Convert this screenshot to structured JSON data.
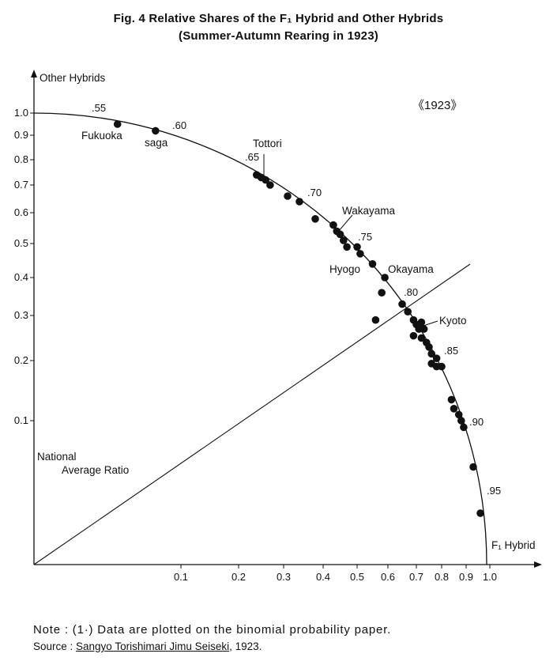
{
  "title": "Fig. 4 Relative Shares of the F₁ Hybrid and Other Hybrids",
  "subtitle": "(Summer-Autumn Rearing in 1923)",
  "note": "Note : (1·) Data are plotted on the binomial probability paper.",
  "source": {
    "prefix": "Source : ",
    "reference": "Sangyo Torishimari Jimu Seiseki",
    "suffix": ", 1923."
  },
  "chart_data": {
    "type": "scatter",
    "year_label": "《1923》",
    "xlabel": "F₁ Hybrid",
    "ylabel": "Other Hybrids",
    "xlim": [
      0,
      1.0
    ],
    "ylim": [
      0,
      1.0
    ],
    "x_ticks": [
      "0.1",
      "0.2",
      "0.3",
      "0.4",
      "0.5",
      "0.6",
      "0.7",
      "0.8",
      "0.9",
      "1.0"
    ],
    "y_ticks": [
      "0.1",
      "0.2",
      "0.3",
      "0.4",
      "0.5",
      "0.6",
      "0.7",
      "0.8",
      "0.9",
      "1.0"
    ],
    "reference_line": "National Average Ratio",
    "curve_ticks": [
      ".55",
      ".60",
      ".65",
      ".70",
      ".75",
      ".80",
      ".85",
      ".90",
      ".95"
    ],
    "annotations": [
      "Fukuoka",
      "saga",
      "Tottori",
      "Wakayama",
      "Hyogo",
      "Okayama",
      "Kyoto"
    ],
    "points": [
      {
        "x": 0.05,
        "y": 0.95,
        "label": "Fukuoka"
      },
      {
        "x": 0.08,
        "y": 0.92,
        "label": "saga"
      },
      {
        "x": 0.24,
        "y": 0.74
      },
      {
        "x": 0.25,
        "y": 0.73,
        "label": "Tottori"
      },
      {
        "x": 0.26,
        "y": 0.72
      },
      {
        "x": 0.27,
        "y": 0.7
      },
      {
        "x": 0.31,
        "y": 0.66
      },
      {
        "x": 0.34,
        "y": 0.64
      },
      {
        "x": 0.38,
        "y": 0.58
      },
      {
        "x": 0.43,
        "y": 0.56
      },
      {
        "x": 0.44,
        "y": 0.54,
        "label": "Wakayama"
      },
      {
        "x": 0.45,
        "y": 0.53
      },
      {
        "x": 0.46,
        "y": 0.51
      },
      {
        "x": 0.47,
        "y": 0.49
      },
      {
        "x": 0.5,
        "y": 0.49
      },
      {
        "x": 0.51,
        "y": 0.47
      },
      {
        "x": 0.55,
        "y": 0.44,
        "label": "Hyogo"
      },
      {
        "x": 0.59,
        "y": 0.4,
        "label": "Okayama"
      },
      {
        "x": 0.58,
        "y": 0.36
      },
      {
        "x": 0.56,
        "y": 0.29
      },
      {
        "x": 0.65,
        "y": 0.33
      },
      {
        "x": 0.67,
        "y": 0.31
      },
      {
        "x": 0.69,
        "y": 0.29
      },
      {
        "x": 0.7,
        "y": 0.28
      },
      {
        "x": 0.71,
        "y": 0.27
      },
      {
        "x": 0.72,
        "y": 0.285
      },
      {
        "x": 0.73,
        "y": 0.27,
        "label": "Kyoto"
      },
      {
        "x": 0.69,
        "y": 0.255
      },
      {
        "x": 0.72,
        "y": 0.25
      },
      {
        "x": 0.74,
        "y": 0.24
      },
      {
        "x": 0.75,
        "y": 0.23
      },
      {
        "x": 0.76,
        "y": 0.215
      },
      {
        "x": 0.78,
        "y": 0.205
      },
      {
        "x": 0.76,
        "y": 0.195
      },
      {
        "x": 0.78,
        "y": 0.19
      },
      {
        "x": 0.8,
        "y": 0.19
      },
      {
        "x": 0.84,
        "y": 0.135
      },
      {
        "x": 0.85,
        "y": 0.12
      },
      {
        "x": 0.87,
        "y": 0.11
      },
      {
        "x": 0.88,
        "y": 0.1
      },
      {
        "x": 0.89,
        "y": 0.095
      },
      {
        "x": 0.93,
        "y": 0.065
      },
      {
        "x": 0.96,
        "y": 0.03
      }
    ]
  }
}
